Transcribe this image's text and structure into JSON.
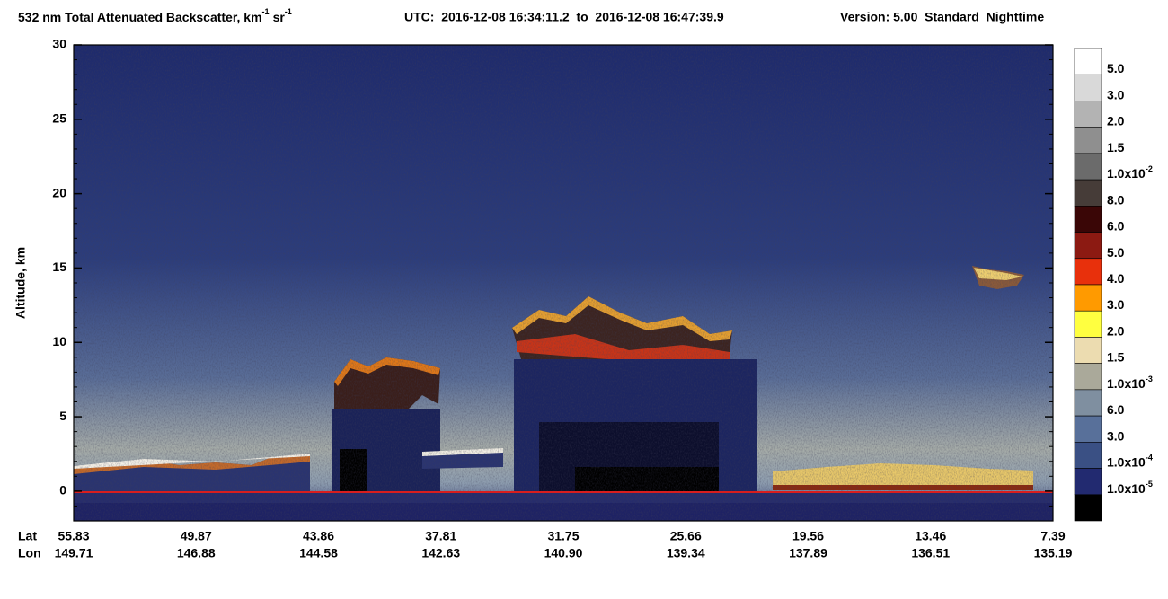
{
  "chart_data": {
    "type": "curtain",
    "title": {
      "main": "532 nm Total Attenuated Backscatter, km",
      "sup1": "-1",
      "unit2": "sr",
      "sup2": "-1",
      "utc": "UTC:  2016-12-08 16:34:11.2  to  2016-12-08 16:47:39.9",
      "version": "Version: 5.00  Standard  Nighttime"
    },
    "y_label": "Altitude, km",
    "ylim": [
      -2,
      30
    ],
    "yticks": [
      0,
      5,
      10,
      15,
      20,
      25,
      30
    ],
    "x_rows": [
      {
        "name": "Lat",
        "labels": [
          55.83,
          49.87,
          43.86,
          37.81,
          31.75,
          25.66,
          19.56,
          13.46,
          7.39
        ]
      },
      {
        "name": "Lon",
        "labels": [
          149.71,
          146.88,
          144.58,
          142.63,
          {
            "value": 140.9,
            "label": "140.90"
          },
          139.34,
          137.89,
          136.51,
          135.19
        ]
      }
    ],
    "colorbar": {
      "colors": [
        "#ffffff",
        "#d9d9d9",
        "#b3b3b3",
        "#8f8f8f",
        "#6b6b6b",
        "#463c38",
        "#3a0606",
        "#8c1a12",
        "#e8300c",
        "#ff9a00",
        "#ffff40",
        "#ecdcb0",
        "#aaa99a",
        "#7f8fa0",
        "#58709a",
        "#3a5084",
        "#222a70",
        "#000000"
      ],
      "labels": [
        {
          "text": "5.0"
        },
        {
          "text": "3.0"
        },
        {
          "text": "2.0"
        },
        {
          "text": "1.5"
        },
        {
          "text": "1.0x10",
          "sup": "-2"
        },
        {
          "text": "8.0"
        },
        {
          "text": "6.0"
        },
        {
          "text": "5.0"
        },
        {
          "text": "4.0"
        },
        {
          "text": "3.0"
        },
        {
          "text": "2.0"
        },
        {
          "text": "1.5"
        },
        {
          "text": "1.0x10",
          "sup": "-3"
        },
        {
          "text": "6.0"
        },
        {
          "text": "3.0"
        },
        {
          "text": "1.0x10",
          "sup": "-4"
        },
        {
          "text": "1.0x10",
          "sup": "-5"
        }
      ]
    }
  }
}
